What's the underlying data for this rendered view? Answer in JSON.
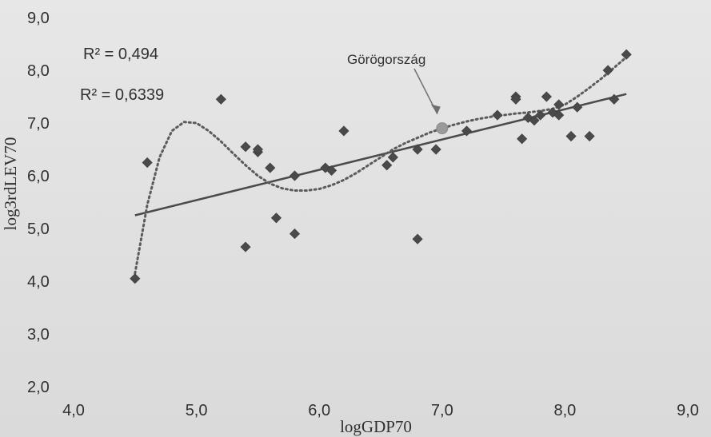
{
  "chart_data": {
    "type": "scatter",
    "xlabel": "logGDP70",
    "ylabel": "log3rdLEV70",
    "xlim": [
      4.0,
      9.0
    ],
    "ylim": [
      2.0,
      9.0
    ],
    "x_ticks": [
      "4,0",
      "5,0",
      "6,0",
      "7,0",
      "8,0",
      "9,0"
    ],
    "y_ticks": [
      "2,0",
      "3,0",
      "4,0",
      "5,0",
      "6,0",
      "7,0",
      "8,0",
      "9,0"
    ],
    "r2_linear": "R² = 0,494",
    "r2_poly": "R² = 0,6339",
    "highlight_label": "Görögország",
    "highlight_point": {
      "x": 7.0,
      "y": 6.9
    },
    "points": [
      {
        "x": 4.5,
        "y": 4.05
      },
      {
        "x": 4.6,
        "y": 6.25
      },
      {
        "x": 5.2,
        "y": 7.45
      },
      {
        "x": 5.4,
        "y": 6.55
      },
      {
        "x": 5.4,
        "y": 4.65
      },
      {
        "x": 5.5,
        "y": 6.45
      },
      {
        "x": 5.5,
        "y": 6.5
      },
      {
        "x": 5.6,
        "y": 6.15
      },
      {
        "x": 5.65,
        "y": 5.2
      },
      {
        "x": 5.8,
        "y": 6.0
      },
      {
        "x": 5.8,
        "y": 4.9
      },
      {
        "x": 6.05,
        "y": 6.15
      },
      {
        "x": 6.1,
        "y": 6.1
      },
      {
        "x": 6.2,
        "y": 6.85
      },
      {
        "x": 6.55,
        "y": 6.2
      },
      {
        "x": 6.6,
        "y": 6.35
      },
      {
        "x": 6.8,
        "y": 6.5
      },
      {
        "x": 6.8,
        "y": 4.8
      },
      {
        "x": 6.95,
        "y": 6.5
      },
      {
        "x": 7.2,
        "y": 6.85
      },
      {
        "x": 7.45,
        "y": 7.15
      },
      {
        "x": 7.6,
        "y": 7.5
      },
      {
        "x": 7.6,
        "y": 7.45
      },
      {
        "x": 7.65,
        "y": 6.7
      },
      {
        "x": 7.7,
        "y": 7.1
      },
      {
        "x": 7.75,
        "y": 7.05
      },
      {
        "x": 7.8,
        "y": 7.15
      },
      {
        "x": 7.85,
        "y": 7.5
      },
      {
        "x": 7.9,
        "y": 7.2
      },
      {
        "x": 7.95,
        "y": 7.35
      },
      {
        "x": 7.95,
        "y": 7.15
      },
      {
        "x": 8.05,
        "y": 6.75
      },
      {
        "x": 8.1,
        "y": 7.3
      },
      {
        "x": 8.2,
        "y": 6.75
      },
      {
        "x": 8.35,
        "y": 8.0
      },
      {
        "x": 8.4,
        "y": 7.45
      },
      {
        "x": 8.5,
        "y": 8.3
      }
    ],
    "linear_trend": {
      "x": [
        4.5,
        8.5
      ],
      "y": [
        5.25,
        7.55
      ]
    },
    "poly_trend": {
      "x": [
        4.5,
        4.6,
        4.7,
        4.8,
        4.9,
        5.0,
        5.1,
        5.2,
        5.3,
        5.4,
        5.5,
        5.6,
        5.7,
        5.8,
        5.9,
        6.0,
        6.1,
        6.2,
        6.3,
        6.4,
        6.5,
        6.6,
        6.7,
        6.8,
        6.9,
        7.0,
        7.1,
        7.2,
        7.3,
        7.4,
        7.5,
        7.6,
        7.7,
        7.8,
        7.9,
        8.0,
        8.1,
        8.2,
        8.3,
        8.4,
        8.5
      ],
      "y": [
        4.15,
        5.45,
        6.35,
        6.85,
        7.02,
        7.0,
        6.85,
        6.65,
        6.42,
        6.2,
        6.0,
        5.85,
        5.76,
        5.72,
        5.72,
        5.75,
        5.82,
        5.92,
        6.05,
        6.2,
        6.35,
        6.5,
        6.62,
        6.72,
        6.82,
        6.9,
        6.97,
        7.03,
        7.08,
        7.12,
        7.15,
        7.18,
        7.2,
        7.23,
        7.27,
        7.35,
        7.5,
        7.67,
        7.85,
        8.05,
        8.25
      ]
    }
  }
}
